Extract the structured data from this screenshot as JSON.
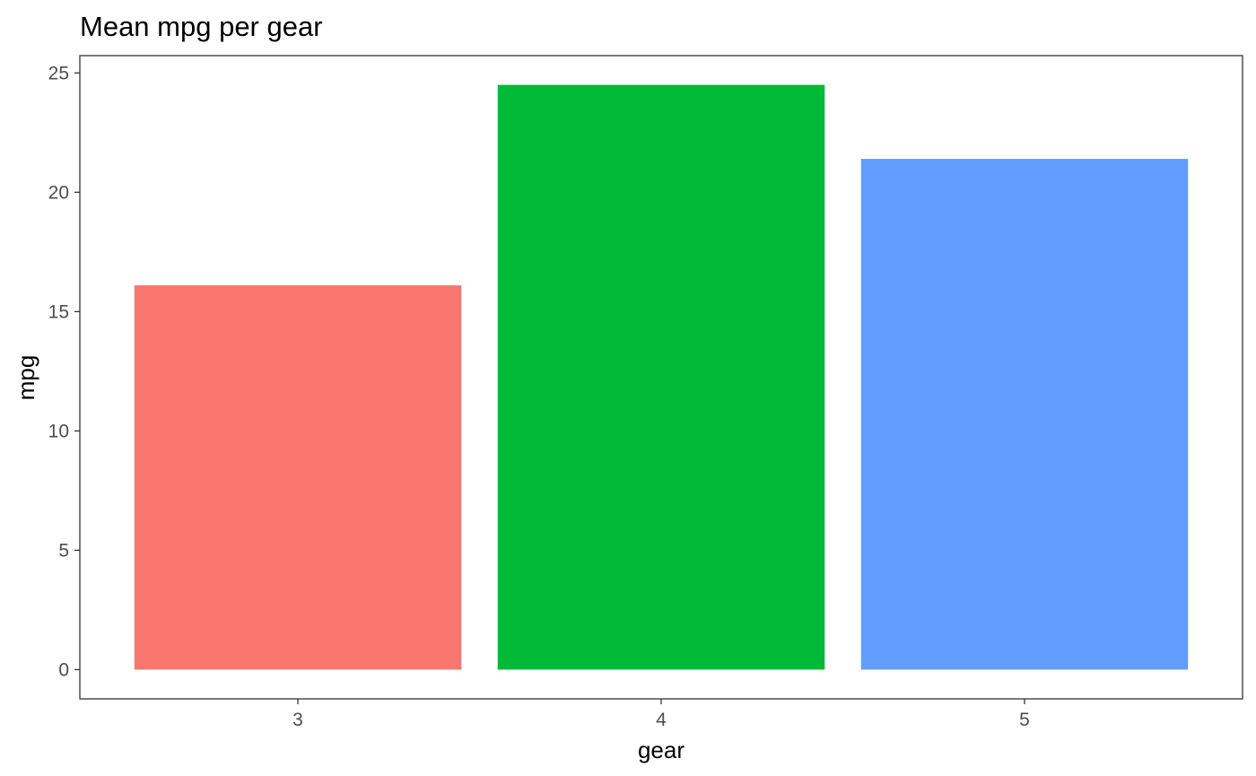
{
  "chart_data": {
    "type": "bar",
    "title": "Mean mpg per gear",
    "xlabel": "gear",
    "ylabel": "mpg",
    "categories": [
      "3",
      "4",
      "5"
    ],
    "values": [
      16.1,
      24.5,
      21.4
    ],
    "bar_colors": [
      "#F8766D",
      "#00BA38",
      "#619CFF"
    ],
    "ylim": [
      -1.225,
      25.725
    ],
    "yticks": [
      0,
      5,
      10,
      15,
      20,
      25
    ],
    "ytick_labels": [
      "0",
      "5",
      "10",
      "15",
      "20",
      "25"
    ],
    "grid": false,
    "legend": "none",
    "panel_border_color": "#333333",
    "tick_color": "#333333"
  }
}
